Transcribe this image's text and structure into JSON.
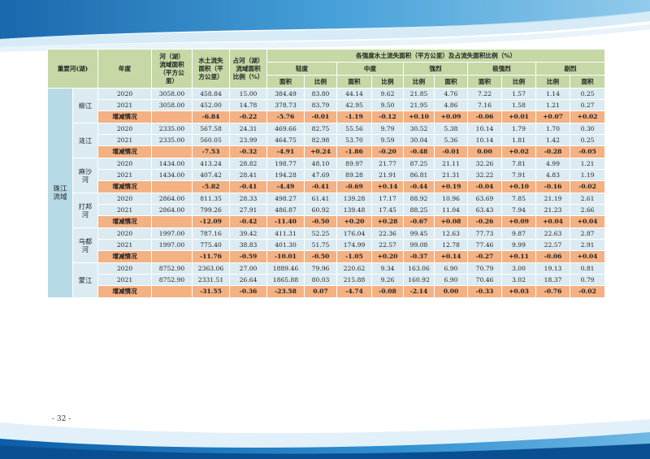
{
  "page_number": "- 32 -",
  "colors": {
    "header_green": "#c5d8a6",
    "row_blue": "#dcebf2",
    "change_orange": "#f4b183",
    "basin_blue": "#b7dbe6",
    "wave_blue": "#1f7fbf"
  },
  "header": {
    "river": "重要河(湖)",
    "year": "年度",
    "area_lines": [
      "河（湖）",
      "流域面积",
      "（平方公",
      "里）"
    ],
    "loss_lines": [
      "水土流失",
      "面积（平",
      "方公里）"
    ],
    "ratio_lines": [
      "占河（湖）",
      "流域面积",
      "比例（%）"
    ],
    "group": "各强度水土流失面积（平方公里）及占流失面积比例（%）",
    "levels": [
      "轻度",
      "中度",
      "强烈",
      "极强烈",
      "剧烈"
    ],
    "subcols": [
      "面积",
      "比例",
      "面积",
      "比例",
      "比例",
      "面积",
      "面积",
      "比例",
      "比例",
      "面积"
    ]
  },
  "basin_lines": [
    "珠江",
    "流域"
  ],
  "change_label": "增减情况",
  "groups": [
    {
      "river_lines": [
        "柳江"
      ],
      "rows": [
        [
          "2020",
          "3058.00",
          "458.84",
          "15.00",
          "384.49",
          "83.80",
          "44.14",
          "9.62",
          "21.85",
          "4.76",
          "7.22",
          "1.57",
          "1.14",
          "0.25"
        ],
        [
          "2021",
          "3058.00",
          "452.00",
          "14.78",
          "378.73",
          "83.79",
          "42.95",
          "9.50",
          "21.95",
          "4.86",
          "7.16",
          "1.58",
          "1.21",
          "0.27"
        ]
      ],
      "change": [
        "-6.84",
        "-0.22",
        "-5.76",
        "-0.01",
        "-1.19",
        "-0.12",
        "+0.10",
        "+0.09",
        "-0.06",
        "+0.01",
        "+0.07",
        "+0.02"
      ]
    },
    {
      "river_lines": [
        "涟江"
      ],
      "rows": [
        [
          "2020",
          "2335.00",
          "567.58",
          "24.31",
          "469.66",
          "82.75",
          "55.56",
          "9.79",
          "30.52",
          "5.38",
          "10.14",
          "1.79",
          "1.70",
          "0.30"
        ],
        [
          "2021",
          "2335.00",
          "560.05",
          "23.99",
          "464.75",
          "82.98",
          "53.70",
          "9.59",
          "30.04",
          "5.36",
          "10.14",
          "1.81",
          "1.42",
          "0.25"
        ]
      ],
      "change": [
        "-7.53",
        "-0.32",
        "-4.91",
        "+0.24",
        "-1.86",
        "-0.20",
        "-0.48",
        "-0.01",
        "0.00",
        "+0.02",
        "-0.28",
        "-0.05"
      ]
    },
    {
      "river_lines": [
        "麻沙",
        "河"
      ],
      "rows": [
        [
          "2020",
          "1434.00",
          "413.24",
          "28.82",
          "198.77",
          "48.10",
          "89.97",
          "21.77",
          "87.25",
          "21.11",
          "32.26",
          "7.81",
          "4.99",
          "1.21"
        ],
        [
          "2021",
          "1434.00",
          "407.42",
          "28.41",
          "194.28",
          "47.69",
          "89.28",
          "21.91",
          "86.81",
          "21.31",
          "32.22",
          "7.91",
          "4.83",
          "1.19"
        ]
      ],
      "change": [
        "-5.82",
        "-0.41",
        "-4.49",
        "-0.41",
        "-0.69",
        "+0.14",
        "-0.44",
        "+0.19",
        "-0.04",
        "+0.10",
        "-0.16",
        "-0.02"
      ]
    },
    {
      "river_lines": [
        "打邦",
        "河"
      ],
      "rows": [
        [
          "2020",
          "2864.00",
          "811.35",
          "28.33",
          "498.27",
          "61.41",
          "139.28",
          "17.17",
          "88.92",
          "10.96",
          "63.69",
          "7.85",
          "21.19",
          "2.61"
        ],
        [
          "2021",
          "2864.00",
          "799.26",
          "27.91",
          "486.87",
          "60.92",
          "139.48",
          "17.45",
          "88.25",
          "11.04",
          "63.43",
          "7.94",
          "21.23",
          "2.66"
        ]
      ],
      "change": [
        "-12.09",
        "-0.42",
        "-11.40",
        "-0.50",
        "+0.20",
        "+0.28",
        "-0.67",
        "+0.08",
        "-0.26",
        "+0.09",
        "+0.04",
        "+0.04"
      ]
    },
    {
      "river_lines": [
        "乌都",
        "河"
      ],
      "rows": [
        [
          "2020",
          "1997.00",
          "787.16",
          "39.42",
          "411.31",
          "52.25",
          "176.04",
          "22.36",
          "99.45",
          "12.63",
          "77.73",
          "9.87",
          "22.63",
          "2.87"
        ],
        [
          "2021",
          "1997.00",
          "775.40",
          "38.83",
          "401.30",
          "51.75",
          "174.99",
          "22.57",
          "99.08",
          "12.78",
          "77.46",
          "9.99",
          "22.57",
          "2.91"
        ]
      ],
      "change": [
        "-11.76",
        "-0.59",
        "-10.01",
        "-0.50",
        "-1.05",
        "+0.20",
        "-0.37",
        "+0.14",
        "-0.27",
        "+0.11",
        "-0.06",
        "+0.04"
      ]
    },
    {
      "river_lines": [
        "蒙江"
      ],
      "rows": [
        [
          "2020",
          "8752.90",
          "2363.06",
          "27.00",
          "1889.46",
          "79.96",
          "220.62",
          "9.34",
          "163.06",
          "6.90",
          "70.79",
          "3.00",
          "19.13",
          "0.81"
        ],
        [
          "2021",
          "8752.90",
          "2331.51",
          "26.64",
          "1865.88",
          "80.03",
          "215.88",
          "9.26",
          "160.92",
          "6.90",
          "70.46",
          "3.02",
          "18.37",
          "0.79"
        ]
      ],
      "change": [
        "-31.55",
        "-0.36",
        "-23.58",
        "0.07",
        "-4.74",
        "-0.08",
        "-2.14",
        "0.00",
        "-0.33",
        "+0.03",
        "-0.76",
        "-0.02"
      ]
    }
  ]
}
